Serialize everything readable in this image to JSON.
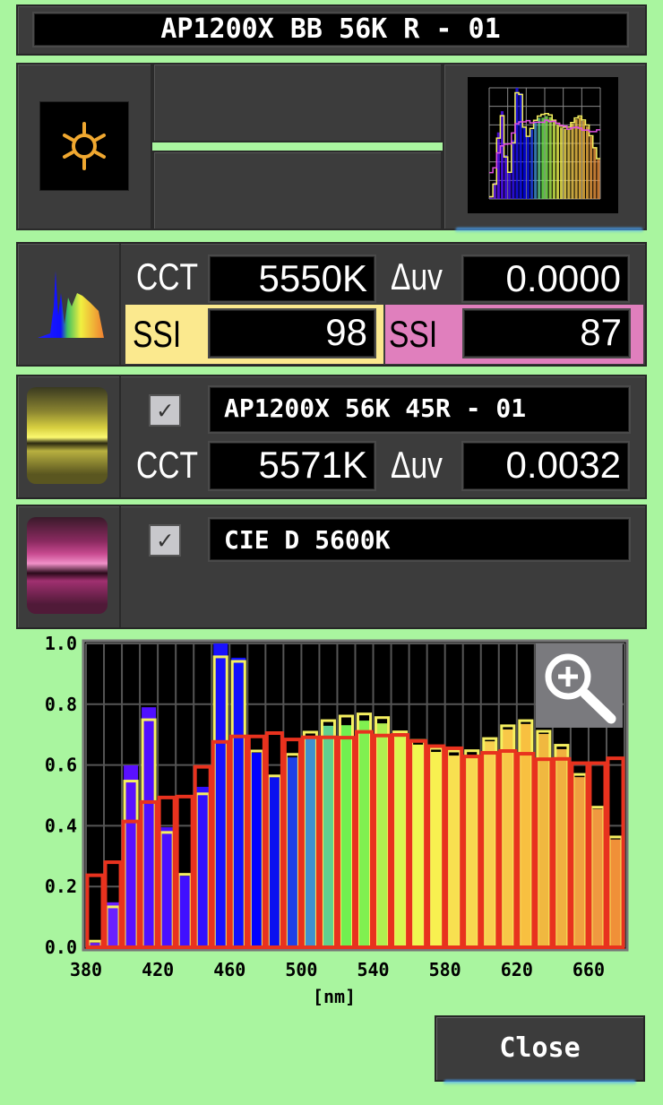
{
  "header": {
    "title": "AP1200X BB 56K R - 01"
  },
  "source_panel": {
    "icon": "sun-icon",
    "icon_color": "#f0a830",
    "thumbnail": "spectrum-thumbnail-icon"
  },
  "measurement": {
    "icon": "spectrum-icon",
    "cct_label": "CCT",
    "cct_value": "5550K",
    "duv_label": "Δuv",
    "duv_value": "0.0000",
    "ssi_a_label": "SSI",
    "ssi_a_value": "98",
    "ssi_a_color": "#fbe98e",
    "ssi_b_label": "SSI",
    "ssi_b_value": "87",
    "ssi_b_color": "#e07fbd"
  },
  "reference_1": {
    "checked": true,
    "checkmark": "✓",
    "name": "AP1200X 56K 45R - 01",
    "cct_label": "CCT",
    "cct_value": "5571K",
    "duv_label": "Δuv",
    "duv_value": "0.0032",
    "color": "#f5f060"
  },
  "reference_2": {
    "checked": true,
    "checkmark": "✓",
    "name": "CIE D 5600K",
    "color": "#e070b0"
  },
  "zoom_button": {
    "icon": "zoom-in-icon"
  },
  "close_button": {
    "label": "Close"
  },
  "chart_data": {
    "type": "bar",
    "xlabel": "[nm]",
    "ylabel": "",
    "xlim": [
      380,
      680
    ],
    "ylim": [
      0,
      1.0
    ],
    "x_ticks": [
      "380",
      "420",
      "460",
      "500",
      "540",
      "580",
      "620",
      "660"
    ],
    "y_ticks": [
      "0.0",
      "0.2",
      "0.4",
      "0.6",
      "0.8",
      "1.0"
    ],
    "grid": true,
    "categories": [
      380,
      390,
      400,
      410,
      420,
      430,
      440,
      450,
      460,
      470,
      480,
      490,
      500,
      510,
      520,
      530,
      540,
      550,
      560,
      570,
      580,
      590,
      600,
      610,
      620,
      630,
      640,
      650,
      660,
      670
    ],
    "series": [
      {
        "style": "filled",
        "values": [
          0.015,
          0.148,
          0.599,
          0.79,
          0.395,
          0.235,
          0.528,
          1.0,
          0.953,
          0.64,
          0.56,
          0.625,
          0.69,
          0.729,
          0.731,
          0.746,
          0.737,
          0.693,
          0.667,
          0.643,
          0.631,
          0.631,
          0.678,
          0.717,
          0.735,
          0.702,
          0.652,
          0.56,
          0.455,
          0.355
        ]
      },
      {
        "style": "outline",
        "color": "#f5f060",
        "values": [
          0.02,
          0.133,
          0.547,
          0.749,
          0.378,
          0.24,
          0.505,
          0.956,
          0.941,
          0.646,
          0.564,
          0.635,
          0.708,
          0.746,
          0.761,
          0.768,
          0.756,
          0.709,
          0.681,
          0.655,
          0.646,
          0.647,
          0.687,
          0.729,
          0.746,
          0.711,
          0.665,
          0.569,
          0.461,
          0.363
        ]
      },
      {
        "style": "outline",
        "color": "#e8321e",
        "values": [
          0.237,
          0.28,
          0.414,
          0.478,
          0.493,
          0.496,
          0.594,
          0.676,
          0.694,
          0.694,
          0.705,
          0.684,
          0.691,
          0.691,
          0.69,
          0.709,
          0.697,
          0.699,
          0.679,
          0.662,
          0.655,
          0.628,
          0.64,
          0.646,
          0.637,
          0.619,
          0.62,
          0.606,
          0.606,
          0.622
        ]
      }
    ],
    "bar_colors": [
      "#6a20e8",
      "#6a20ff",
      "#5a10ff",
      "#5010ff",
      "#4a10ff",
      "#4010ff",
      "#3010ff",
      "#1a10ff",
      "#1010ff",
      "#0000ff",
      "#0a10f0",
      "#1e40e8",
      "#4090d0",
      "#60d090",
      "#70f050",
      "#80f050",
      "#b0f050",
      "#d8f850",
      "#f0f850",
      "#f8f050",
      "#f8e050",
      "#f8d850",
      "#f8d050",
      "#f8c848",
      "#f8c040",
      "#f0b840",
      "#f0b040",
      "#f0a040",
      "#f09840",
      "#f09038"
    ]
  }
}
